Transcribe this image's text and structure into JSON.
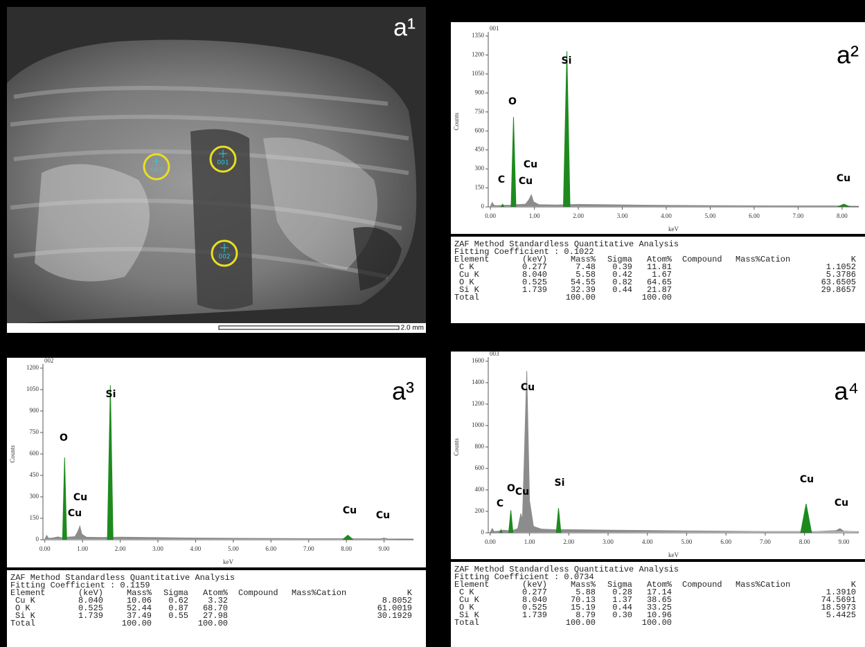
{
  "image": {
    "panel_label": "a¹",
    "points": [
      "001",
      "002",
      "003"
    ],
    "scale_bar": "2.0 mm"
  },
  "chart_data": [
    {
      "type": "area",
      "panel_label": "a²",
      "title": "001",
      "x_label": "keV",
      "y_label": "Counts",
      "color": "#8c8c8c",
      "peak_color": "#1e8a1e",
      "x": [
        0,
        0.04,
        0.08,
        0.15,
        0.3,
        0.45,
        0.6,
        0.8,
        0.88,
        0.93,
        0.98,
        1.1,
        1.5,
        2.0,
        2.5,
        3.0,
        3.5,
        4.0,
        5.0,
        6.0,
        7.0,
        7.9,
        8.2,
        8.38
      ],
      "values": [
        5,
        35,
        12,
        10,
        12,
        14,
        18,
        22,
        60,
        95,
        40,
        18,
        15,
        20,
        18,
        16,
        14,
        12,
        10,
        9,
        8,
        8,
        6,
        5
      ],
      "peaks": [
        {
          "x": [
            0.24,
            0.277,
            0.31
          ],
          "values": [
            0,
            22,
            0
          ]
        },
        {
          "x": [
            0.47,
            0.525,
            0.58
          ],
          "values": [
            0,
            710,
            0
          ]
        },
        {
          "x": [
            1.66,
            1.739,
            1.81
          ],
          "values": [
            0,
            1230,
            0
          ]
        },
        {
          "x": [
            7.9,
            8.04,
            8.18
          ],
          "values": [
            0,
            22,
            0
          ]
        }
      ],
      "annotations": [
        "C",
        "O",
        "Cu",
        "Cu",
        "Si",
        "Cu"
      ],
      "xlim": [
        -0.05,
        8.38
      ],
      "ylim": [
        0,
        1350
      ],
      "xticks": [
        {
          "value": 0,
          "label": "0.00"
        },
        {
          "value": 1,
          "label": "1.00"
        },
        {
          "value": 2,
          "label": "2.00"
        },
        {
          "value": 3,
          "label": "3.00"
        },
        {
          "value": 4,
          "label": "4.00"
        },
        {
          "value": 5,
          "label": "5.00"
        },
        {
          "value": 6,
          "label": "6.00"
        },
        {
          "value": 7,
          "label": "7.00"
        },
        {
          "value": 8,
          "label": "8.00"
        }
      ],
      "yticks": [
        0,
        150,
        300,
        450,
        600,
        750,
        900,
        1050,
        1200,
        1350
      ]
    },
    {
      "type": "area",
      "panel_label": "a³",
      "title": "002",
      "x_label": "keV",
      "y_label": "Counts",
      "color": "#8c8c8c",
      "peak_color": "#1e8a1e",
      "x": [
        0,
        0.05,
        0.1,
        0.2,
        0.35,
        0.45,
        0.6,
        0.8,
        0.88,
        0.93,
        0.98,
        1.1,
        1.5,
        2.0,
        3.0,
        4.0,
        5.0,
        6.0,
        7.0,
        7.9,
        8.2,
        8.9,
        9.0,
        9.1,
        9.78
      ],
      "values": [
        5,
        30,
        10,
        12,
        20,
        14,
        18,
        22,
        60,
        95,
        40,
        18,
        16,
        18,
        15,
        12,
        10,
        9,
        8,
        8,
        7,
        6,
        12,
        6,
        5
      ],
      "peaks": [
        {
          "x": [
            0.47,
            0.525,
            0.58
          ],
          "values": [
            0,
            575,
            0
          ]
        },
        {
          "x": [
            1.66,
            1.739,
            1.81
          ],
          "values": [
            0,
            1080,
            0
          ]
        },
        {
          "x": [
            7.9,
            8.04,
            8.18
          ],
          "values": [
            0,
            32,
            0
          ]
        }
      ],
      "annotations": [
        "O",
        "Cu",
        "Cu",
        "Si",
        "Cu",
        "Cu"
      ],
      "xlim": [
        -0.05,
        9.78
      ],
      "ylim": [
        0,
        1200
      ],
      "xticks": [
        {
          "value": 0,
          "label": "0.00"
        },
        {
          "value": 1,
          "label": "1.00"
        },
        {
          "value": 2,
          "label": "2.00"
        },
        {
          "value": 3,
          "label": "3.00"
        },
        {
          "value": 4,
          "label": "4.00"
        },
        {
          "value": 5,
          "label": "5.00"
        },
        {
          "value": 6,
          "label": "6.00"
        },
        {
          "value": 7,
          "label": "7.00"
        },
        {
          "value": 8,
          "label": "8.00"
        },
        {
          "value": 9,
          "label": "9.00"
        }
      ],
      "yticks": [
        0,
        150,
        300,
        450,
        600,
        750,
        900,
        1050,
        1200
      ]
    },
    {
      "type": "area",
      "panel_label": "a⁴",
      "title": "003",
      "x_label": "keV",
      "y_label": "Counts",
      "color": "#8c8c8c",
      "peak_color": "#1e8a1e",
      "x": [
        0,
        0.05,
        0.1,
        0.2,
        0.35,
        0.45,
        0.6,
        0.7,
        0.78,
        0.82,
        0.86,
        0.93,
        1.0,
        1.1,
        1.3,
        1.6,
        2.0,
        3.0,
        4.0,
        5.0,
        6.0,
        7.0,
        7.8,
        8.3,
        8.8,
        8.9,
        9.0,
        9.38
      ],
      "values": [
        5,
        40,
        12,
        15,
        25,
        20,
        25,
        40,
        180,
        120,
        600,
        1510,
        300,
        60,
        35,
        30,
        30,
        25,
        22,
        18,
        15,
        12,
        12,
        12,
        20,
        40,
        15,
        10
      ],
      "peaks": [
        {
          "x": [
            0.24,
            0.277,
            0.31
          ],
          "values": [
            0,
            30,
            0
          ]
        },
        {
          "x": [
            0.47,
            0.525,
            0.58
          ],
          "values": [
            0,
            210,
            0
          ]
        },
        {
          "x": [
            1.68,
            1.739,
            1.8
          ],
          "values": [
            0,
            230,
            0
          ]
        },
        {
          "x": [
            7.9,
            8.04,
            8.18
          ],
          "values": [
            0,
            270,
            0
          ]
        }
      ],
      "annotations": [
        "Cu",
        "C",
        "O",
        "Cu",
        "Si",
        "Cu",
        "Cu"
      ],
      "xlim": [
        -0.05,
        9.38
      ],
      "ylim": [
        0,
        1600
      ],
      "xticks": [
        {
          "value": 0,
          "label": "0.00"
        },
        {
          "value": 1,
          "label": "1.00"
        },
        {
          "value": 2,
          "label": "2.00"
        },
        {
          "value": 3,
          "label": "3.00"
        },
        {
          "value": 4,
          "label": "4.00"
        },
        {
          "value": 5,
          "label": "5.00"
        },
        {
          "value": 6,
          "label": "6.00"
        },
        {
          "value": 7,
          "label": "7.00"
        },
        {
          "value": 8,
          "label": "8.00"
        },
        {
          "value": 9,
          "label": "9.00"
        }
      ],
      "yticks": [
        0,
        200,
        400,
        600,
        800,
        1000,
        1200,
        1400,
        1600
      ]
    }
  ],
  "tables": [
    {
      "title": "ZAF Method Standardless Quantitative Analysis",
      "fitting": "Fitting Coefficient : 0.1022",
      "header": [
        "Element",
        "(keV)",
        "Mass%",
        "Sigma",
        "Atom%",
        "Compound",
        "Mass%",
        "Cation",
        "K"
      ],
      "rows": [
        [
          "C K",
          "0.277",
          "7.48",
          "0.39",
          "11.81",
          "1.1052"
        ],
        [
          "Cu K",
          "8.040",
          "5.58",
          "0.42",
          "1.67",
          "5.3786"
        ],
        [
          "O K",
          "0.525",
          "54.55",
          "0.82",
          "64.65",
          "63.6505"
        ],
        [
          "Si K",
          "1.739",
          "32.39",
          "0.44",
          "21.87",
          "29.8657"
        ]
      ],
      "total": {
        "label": "Total",
        "mass": "100.00",
        "atom": "100.00"
      }
    },
    {
      "title": "ZAF Method Standardless Quantitative Analysis",
      "fitting": "Fitting Coefficient : 0.1159",
      "header": [
        "Element",
        "(keV)",
        "Mass%",
        "Sigma",
        "Atom%",
        "Compound",
        "Mass%",
        "Cation",
        "K"
      ],
      "rows": [
        [
          "Cu K",
          "8.040",
          "10.06",
          "0.62",
          "3.32",
          "8.8052"
        ],
        [
          "O K",
          "0.525",
          "52.44",
          "0.87",
          "68.70",
          "61.0019"
        ],
        [
          "Si K",
          "1.739",
          "37.49",
          "0.55",
          "27.98",
          "30.1929"
        ]
      ],
      "total": {
        "label": "Total",
        "mass": "100.00",
        "atom": "100.00"
      }
    },
    {
      "title": "ZAF Method Standardless Quantitative Analysis",
      "fitting": "Fitting Coefficient : 0.0734",
      "header": [
        "Element",
        "(keV)",
        "Mass%",
        "Sigma",
        "Atom%",
        "Compound",
        "Mass%",
        "Cation",
        "K"
      ],
      "rows": [
        [
          "C K",
          "0.277",
          "5.88",
          "0.28",
          "17.14",
          "1.3910"
        ],
        [
          "Cu K",
          "8.040",
          "70.13",
          "1.37",
          "38.65",
          "74.5691"
        ],
        [
          "O K",
          "0.525",
          "15.19",
          "0.44",
          "33.25",
          "18.5973"
        ],
        [
          "Si K",
          "1.739",
          "8.79",
          "0.30",
          "10.96",
          "5.4425"
        ]
      ],
      "total": {
        "label": "Total",
        "mass": "100.00",
        "atom": "100.00"
      }
    }
  ]
}
